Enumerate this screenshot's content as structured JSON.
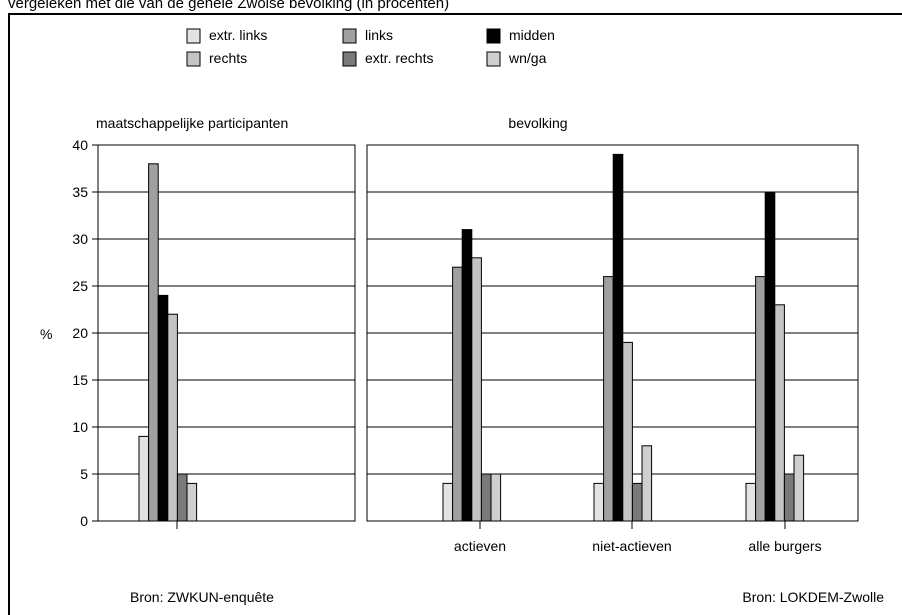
{
  "caption": "vergeleken met die van de gehele Zwolse bevolking (in procenten)",
  "legend": [
    {
      "label": "extr. links",
      "color": "#e3e3e3"
    },
    {
      "label": "links",
      "color": "#a0a0a0"
    },
    {
      "label": "midden",
      "color": "#000000"
    },
    {
      "label": "rechts",
      "color": "#c4c4c4"
    },
    {
      "label": "extr. rechts",
      "color": "#7a7a7a"
    },
    {
      "label": "wn/ga",
      "color": "#cfcfcf"
    }
  ],
  "chart_data": [
    {
      "type": "bar",
      "title": "maatschappelijke participanten",
      "ylabel": "%",
      "ylim": [
        0,
        40
      ],
      "yticks": [
        0,
        5,
        10,
        15,
        20,
        25,
        30,
        35,
        40
      ],
      "categories": [
        ""
      ],
      "series": [
        {
          "name": "extr. links",
          "values": [
            9
          ]
        },
        {
          "name": "links",
          "values": [
            38
          ]
        },
        {
          "name": "midden",
          "values": [
            24
          ]
        },
        {
          "name": "rechts",
          "values": [
            22
          ]
        },
        {
          "name": "extr. rechts",
          "values": [
            5
          ]
        },
        {
          "name": "wn/ga",
          "values": [
            4
          ]
        }
      ],
      "grid": true,
      "source": "Bron: ZWKUN-enquête"
    },
    {
      "type": "bar",
      "title": "bevolking",
      "ylim": [
        0,
        40
      ],
      "categories": [
        "actieven",
        "niet-actieven",
        "alle burgers"
      ],
      "series": [
        {
          "name": "extr. links",
          "values": [
            4,
            4,
            4
          ]
        },
        {
          "name": "links",
          "values": [
            27,
            26,
            26
          ]
        },
        {
          "name": "midden",
          "values": [
            31,
            39,
            35
          ]
        },
        {
          "name": "rechts",
          "values": [
            28,
            19,
            23
          ]
        },
        {
          "name": "extr. rechts",
          "values": [
            5,
            4,
            5
          ]
        },
        {
          "name": "wn/ga",
          "values": [
            5,
            8,
            7
          ]
        }
      ],
      "grid": true,
      "source": "Bron: LOKDEM-Zwolle"
    }
  ]
}
